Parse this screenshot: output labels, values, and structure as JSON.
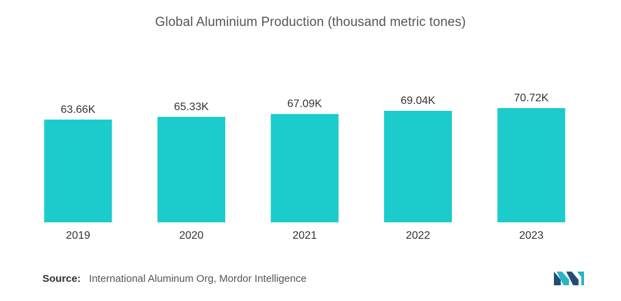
{
  "title": "Global Aluminium Production (thousand metric tones)",
  "chart_data": {
    "type": "bar",
    "title": "Global Aluminium Production (thousand metric tones)",
    "categories": [
      "2019",
      "2020",
      "2021",
      "2022",
      "2023"
    ],
    "values": [
      63.66,
      65.33,
      67.09,
      69.04,
      70.72
    ],
    "data_labels": [
      "63.66K",
      "65.33K",
      "67.09K",
      "69.04K",
      "70.72K"
    ],
    "xlabel": "",
    "ylabel": "",
    "ylim": [
      0,
      80
    ],
    "grid": false,
    "legend": "none",
    "bar_color": "#1ccbcb"
  },
  "source": {
    "label": "Source:",
    "text": "International Aluminum Org, Mordor Intelligence"
  },
  "colors": {
    "logo_dark": "#1f4e79",
    "logo_light": "#27b6c6"
  },
  "logo_icon": "mordor-intelligence-logo-icon"
}
